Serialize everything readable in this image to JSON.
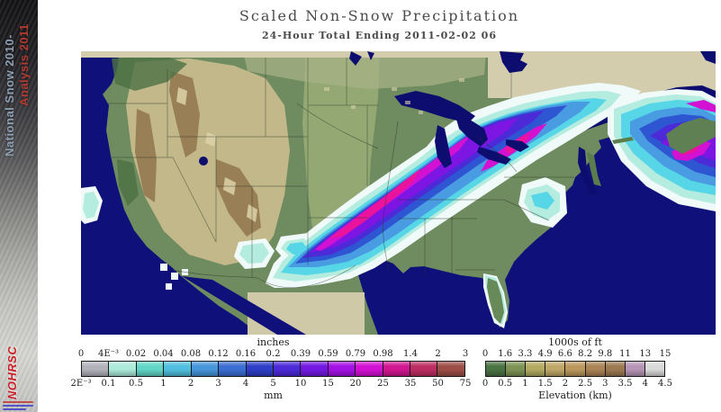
{
  "header": {
    "title": "Scaled Non-Snow Precipitation",
    "subtitle": "24-Hour Total Ending 2011-02-02 06"
  },
  "sidebar": {
    "season_label_line1": "National Snow 2010-",
    "season_label_line2": "Analysis 2011",
    "logo_text": "NOHRSC"
  },
  "legends": {
    "precipitation": {
      "unit_top": "inches",
      "unit_bottom": "mm",
      "top_ticks": [
        "0",
        "4E⁻³",
        "0.02",
        "0.04",
        "0.08",
        "0.12",
        "0.16",
        "0.2",
        "0.39",
        "0.59",
        "0.79",
        "0.98",
        "1.4",
        "2",
        "3"
      ],
      "bottom_ticks": [
        "2E⁻³",
        "0.1",
        "0.5",
        "1",
        "2",
        "3",
        "4",
        "5",
        "10",
        "15",
        "20",
        "25",
        "35",
        "50",
        "75"
      ],
      "colors": [
        "#b2b2bc",
        "#aceada",
        "#62d6c6",
        "#50bede",
        "#4694da",
        "#3a6ed2",
        "#2e3ec6",
        "#4c2ad8",
        "#7218e2",
        "#a310e4",
        "#d210d2",
        "#d01690",
        "#bc2e62",
        "#9c4e46"
      ]
    },
    "elevation": {
      "unit_top": "1000s of ft",
      "unit_bottom": "Elevation (km)",
      "top_ticks": [
        "0",
        "1.6",
        "3.3",
        "4.9",
        "6.6",
        "8.2",
        "9.8",
        "11",
        "13",
        "15"
      ],
      "bottom_ticks": [
        "0",
        "0.5",
        "1",
        "1.5",
        "2",
        "2.5",
        "3",
        "3.5",
        "4",
        "4.5"
      ],
      "colors": [
        "#4a7342",
        "#7d9355",
        "#b2aa62",
        "#bfa768",
        "#bb975c",
        "#aa8356",
        "#9b7a52",
        "#b694b6",
        "#d9d9d9"
      ]
    }
  },
  "map_palette": {
    "ocean": "#10107a",
    "land_green": "#6f8c60",
    "plains_green": "#97ab76",
    "nodata_tan": "#d3cdae",
    "mountain_tan": "#c6ba8c",
    "ridge_brown": "#8e7148",
    "precip_core_pink": "#ea1399"
  }
}
